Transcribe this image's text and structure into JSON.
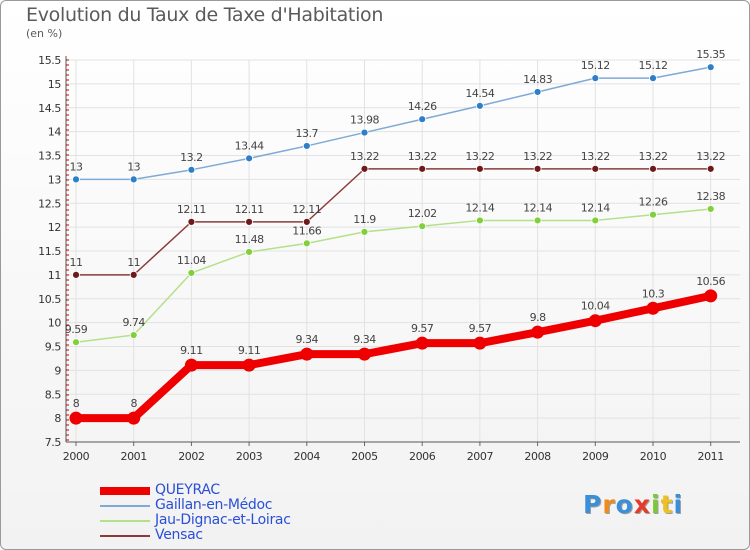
{
  "chart_data": {
    "type": "line",
    "title": "Evolution du Taux de Taxe d'Habitation",
    "subtitle": "(en %)",
    "categories": [
      "2000",
      "2001",
      "2002",
      "2003",
      "2004",
      "2005",
      "2006",
      "2007",
      "2008",
      "2009",
      "2010",
      "2011"
    ],
    "y_ticks": [
      "7.5",
      "8",
      "8.5",
      "9",
      "9.5",
      "10",
      "10.5",
      "11",
      "11.5",
      "12",
      "12.5",
      "13",
      "13.5",
      "14",
      "14.5",
      "15",
      "15.5"
    ],
    "ylim": [
      7.5,
      15.5
    ],
    "series": [
      {
        "name": "QUEYRAC",
        "color": "#ee0000",
        "emphasis": true,
        "values": [
          8,
          8,
          9.11,
          9.11,
          9.34,
          9.34,
          9.57,
          9.57,
          9.8,
          10.04,
          10.3,
          10.56
        ],
        "labels": [
          "8",
          "8",
          "9.11",
          "9.11",
          "9.34",
          "9.34",
          "9.57",
          "9.57",
          "9.8",
          "10.04",
          "10.3",
          "10.56"
        ]
      },
      {
        "name": "Gaillan-en-Médoc",
        "color": "#7eaad6",
        "marker": "#2f7fc8",
        "values": [
          13,
          13,
          13.2,
          13.44,
          13.7,
          13.98,
          14.26,
          14.54,
          14.83,
          15.12,
          15.12,
          15.35
        ],
        "labels": [
          "13",
          "13",
          "13.2",
          "13.44",
          "13.7",
          "13.98",
          "14.26",
          "14.54",
          "14.83",
          "15.12",
          "15.12",
          "15.35"
        ]
      },
      {
        "name": "Jau-Dignac-et-Loirac",
        "color": "#b4e08a",
        "marker": "#7fd03a",
        "values": [
          9.59,
          9.74,
          11.04,
          11.48,
          11.66,
          11.9,
          12.02,
          12.14,
          12.14,
          12.14,
          12.26,
          12.38
        ],
        "labels": [
          "9.59",
          "9.74",
          "11.04",
          "11.48",
          "11.66",
          "11.9",
          "12.02",
          "12.14",
          "12.14",
          "12.14",
          "12.26",
          "12.38"
        ]
      },
      {
        "name": "Vensac",
        "color": "#8b3a3a",
        "marker": "#6e1a1a",
        "values": [
          11,
          11,
          12.11,
          12.11,
          12.11,
          13.22,
          13.22,
          13.22,
          13.22,
          13.22,
          13.22,
          13.22
        ],
        "labels": [
          "11",
          "11",
          "12.11",
          "12.11",
          "12.11",
          "13.22",
          "13.22",
          "13.22",
          "13.22",
          "13.22",
          "13.22",
          "13.22"
        ]
      }
    ],
    "grid": true,
    "legend_position": "bottom-left"
  },
  "logo": {
    "letters": [
      "P",
      "r",
      "o",
      "x",
      "i",
      "t",
      "i"
    ],
    "colors": [
      "#3a8fd8",
      "#f08a1c",
      "#3a8fd8",
      "#e83a2a",
      "#7cc83a",
      "#f0c020",
      "#3a8fd8"
    ]
  }
}
